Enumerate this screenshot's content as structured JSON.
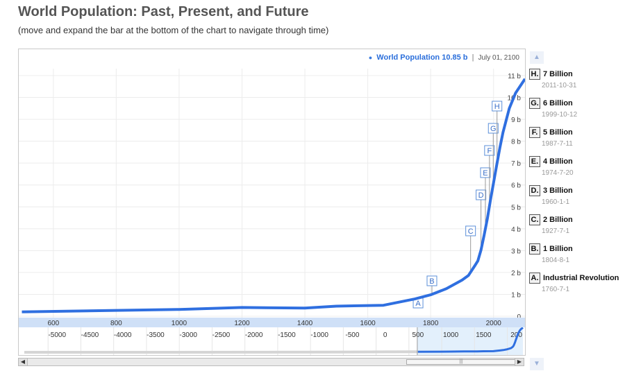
{
  "header": {
    "title": "World Population: Past, Present, and Future",
    "subtitle": "(move and expand the bar at the bottom of the chart to navigate through time)"
  },
  "legend": {
    "series_name": "World Population",
    "value": "10.85 b",
    "separator": "|",
    "date": "July 01, 2100"
  },
  "annotations_panel": {
    "items": [
      {
        "letter": "H.",
        "title": "7 Billion",
        "date": "2011-10-31"
      },
      {
        "letter": "G.",
        "title": "6 Billion",
        "date": "1999-10-12"
      },
      {
        "letter": "F.",
        "title": "5 Billion",
        "date": "1987-7-11"
      },
      {
        "letter": "E.",
        "title": "4 Billion",
        "date": "1974-7-20"
      },
      {
        "letter": "D.",
        "title": "3 Billion",
        "date": "1960-1-1"
      },
      {
        "letter": "C.",
        "title": "2 Billion",
        "date": "1927-7-1"
      },
      {
        "letter": "B.",
        "title": "1 Billion",
        "date": "1804-8-1"
      },
      {
        "letter": "A.",
        "title": "Industrial Revolution",
        "date": "1760-7-1"
      }
    ],
    "up_arrow": "▲",
    "down_arrow": "▼"
  },
  "scrollbar": {
    "left_arrow": "◀",
    "right_arrow": "▶",
    "thumb_grip": "|||"
  },
  "chart_data": {
    "type": "line",
    "series": [
      {
        "name": "World Population",
        "x": [
          500,
          1000,
          1200,
          1400,
          1500,
          1650,
          1750,
          1800,
          1850,
          1900,
          1920,
          1940,
          1950,
          1960,
          1970,
          1980,
          1990,
          2000,
          2010,
          2020,
          2030,
          2050,
          2070,
          2100
        ],
        "y": [
          0.2,
          0.31,
          0.4,
          0.37,
          0.46,
          0.5,
          0.79,
          0.98,
          1.26,
          1.65,
          1.86,
          2.3,
          2.53,
          3.02,
          3.7,
          4.44,
          5.3,
          6.1,
          6.9,
          7.7,
          8.4,
          9.5,
          10.2,
          10.85
        ]
      }
    ],
    "x_ticks": [
      600,
      800,
      1000,
      1200,
      1400,
      1600,
      1800,
      2000
    ],
    "y_ticks": [
      "0",
      "1 b",
      "2 b",
      "3 b",
      "4 b",
      "5 b",
      "6 b",
      "7 b",
      "8 b",
      "9 b",
      "10 b",
      "11 b"
    ],
    "xlim": [
      490,
      2100
    ],
    "ylim": [
      0,
      11
    ],
    "grid": true,
    "annotations": [
      {
        "letter": "A",
        "x": 1760
      },
      {
        "letter": "B",
        "x": 1804
      },
      {
        "letter": "C",
        "x": 1927
      },
      {
        "letter": "D",
        "x": 1960
      },
      {
        "letter": "E",
        "x": 1974
      },
      {
        "letter": "F",
        "x": 1987
      },
      {
        "letter": "G",
        "x": 1999
      },
      {
        "letter": "H",
        "x": 2011
      }
    ],
    "navigator": {
      "x_ticks": [
        "-5000",
        "-4500",
        "-4000",
        "-3500",
        "-3000",
        "-2500",
        "-2000",
        "-1500",
        "-1000",
        "-500",
        "0",
        "500",
        "1000",
        "1500",
        "200"
      ],
      "xlim": [
        -5500,
        2100
      ],
      "selected_range": [
        490,
        2100
      ],
      "background_series": {
        "x": [
          -5500,
          -4000,
          -2000,
          -1000,
          0,
          500
        ],
        "y": [
          0.005,
          0.01,
          0.03,
          0.05,
          0.19,
          0.2
        ]
      }
    }
  },
  "colors": {
    "line": "#2f6fe0",
    "axis_band": "#cfe0f7",
    "nav_highlight": "#e3f0fc",
    "nav_gray": "#d5d5d5"
  }
}
